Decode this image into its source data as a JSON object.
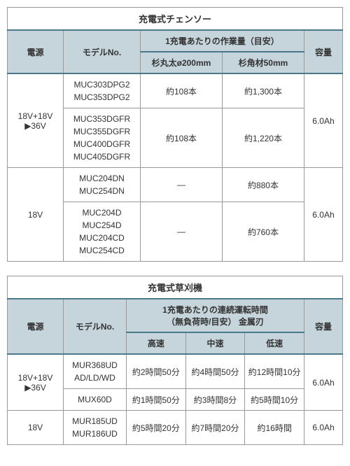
{
  "table1": {
    "title": "充電式チェンソー",
    "headers": {
      "power": "電源",
      "model": "モデルNo.",
      "work": "1充電あたりの作業量（目安）",
      "col1": "杉丸太ø200mm",
      "col2": "杉角材50mm",
      "capacity": "容量"
    },
    "groups": [
      {
        "power": "18V+18V\n▶36V",
        "capacity": "6.0Ah",
        "rows": [
          {
            "models": "MUC303DPG2\nMUC353DPG2",
            "c1": "約108本",
            "c2": "約1,300本"
          },
          {
            "models": "MUC353DGFR\nMUC355DGFR\nMUC400DGFR\nMUC405DGFR",
            "c1": "約108本",
            "c2": "約1,220本"
          }
        ]
      },
      {
        "power": "18V",
        "capacity": "6.0Ah",
        "rows": [
          {
            "models": "MUC204DN\nMUC254DN",
            "c1": "—",
            "c2": "約880本"
          },
          {
            "models": "MUC204D\nMUC254D\nMUC204CD\nMUC254CD",
            "c1": "—",
            "c2": "約760本"
          }
        ]
      }
    ]
  },
  "table2": {
    "title": "充電式草刈機",
    "headers": {
      "power": "電源",
      "model": "モデルNo.",
      "runtime": "1充電あたりの連続運転時間\n（無負荷時/目安） 金属刃",
      "high": "高速",
      "mid": "中速",
      "low": "低速",
      "capacity": "容量"
    },
    "groups": [
      {
        "power": "18V+18V\n▶36V",
        "capacity": "6.0Ah",
        "rows": [
          {
            "models": "MUR368UD AD/LD/WD",
            "high": "約2時間50分",
            "mid": "約4時間50分",
            "low": "約12時間10分"
          },
          {
            "models": "MUX60D",
            "high": "約1時間50分",
            "mid": "約3時間8分",
            "low": "約5時間10分"
          }
        ]
      },
      {
        "power": "18V",
        "capacity": "6.0Ah",
        "rows": [
          {
            "models": "MUR185UD MUR186UD",
            "high": "約5時間20分",
            "mid": "約7時間20分",
            "low": "約16時間"
          }
        ]
      }
    ]
  }
}
